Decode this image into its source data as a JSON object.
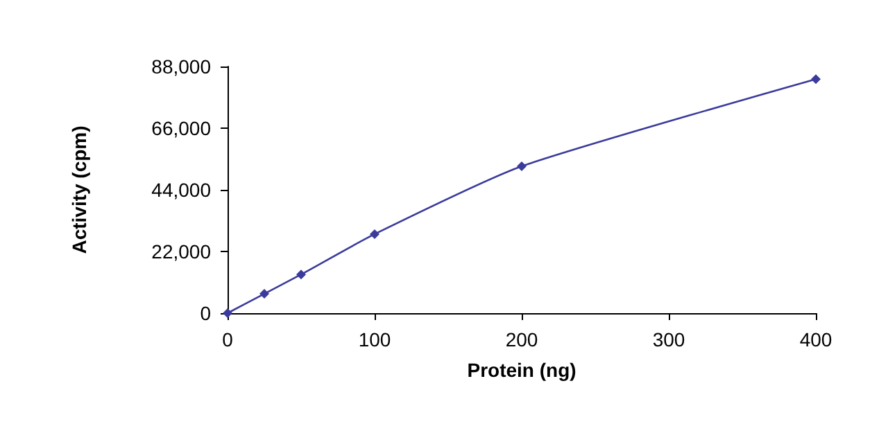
{
  "chart_data": {
    "type": "line",
    "xlabel": "Protein (ng)",
    "ylabel": "Activity (cpm)",
    "x": [
      0,
      25,
      50,
      100,
      200,
      400
    ],
    "series": [
      {
        "color": "#3b3b9c",
        "values": [
          0,
          6900,
          13800,
          28200,
          52400,
          83500
        ]
      }
    ],
    "xlim": [
      0,
      400
    ],
    "xticks": [
      0,
      100,
      200,
      300,
      400
    ],
    "ylim": [
      0,
      88000
    ],
    "yticks": [
      0,
      {
        "value": 22000,
        "label": "22,000"
      },
      {
        "value": 44000,
        "label": "44,000"
      },
      {
        "value": 66000,
        "label": "66,000"
      },
      {
        "value": 88000,
        "label": "88,000"
      }
    ],
    "grid": false,
    "marker": "diamond",
    "line_style": "solid"
  }
}
